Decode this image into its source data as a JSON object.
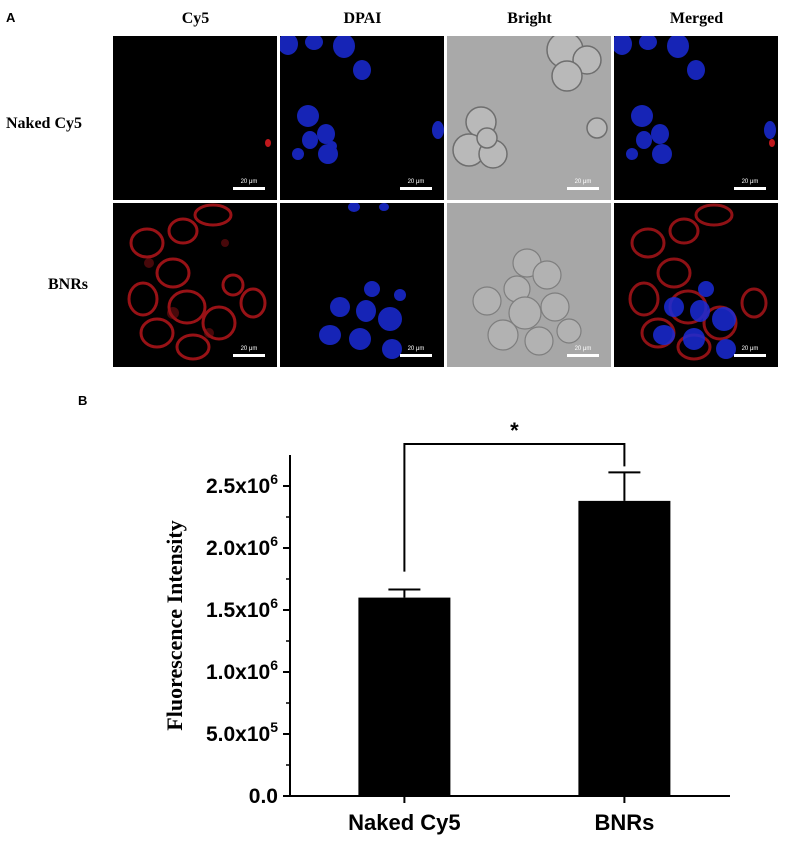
{
  "panel_a": {
    "letter": "A",
    "columns": [
      "Cy5",
      "DPAI",
      "Bright",
      "Merged"
    ],
    "rows": [
      "Naked Cy5",
      "BNRs"
    ],
    "scale_bar_label": "20 μm"
  },
  "panel_b": {
    "letter": "B"
  },
  "chart_data": {
    "type": "bar",
    "categories": [
      "Naked Cy5",
      "BNRs"
    ],
    "values": [
      1600000,
      2380000
    ],
    "errors": [
      65000,
      230000
    ],
    "xlabel": "",
    "ylabel": "Fluorescence Intensity",
    "ylim": [
      0,
      2750000
    ],
    "yticks": [
      {
        "value": 0,
        "base": "0.0",
        "exp": ""
      },
      {
        "value": 500000,
        "base": "5.0x10",
        "exp": "5"
      },
      {
        "value": 1000000,
        "base": "1.0x10",
        "exp": "6"
      },
      {
        "value": 1500000,
        "base": "1.5x10",
        "exp": "6"
      },
      {
        "value": 2000000,
        "base": "2.0x10",
        "exp": "6"
      },
      {
        "value": 2500000,
        "base": "2.5x10",
        "exp": "6"
      }
    ],
    "significance": {
      "label": "*",
      "between": [
        0,
        1
      ]
    },
    "bar_color": "#000000",
    "grid": false
  }
}
